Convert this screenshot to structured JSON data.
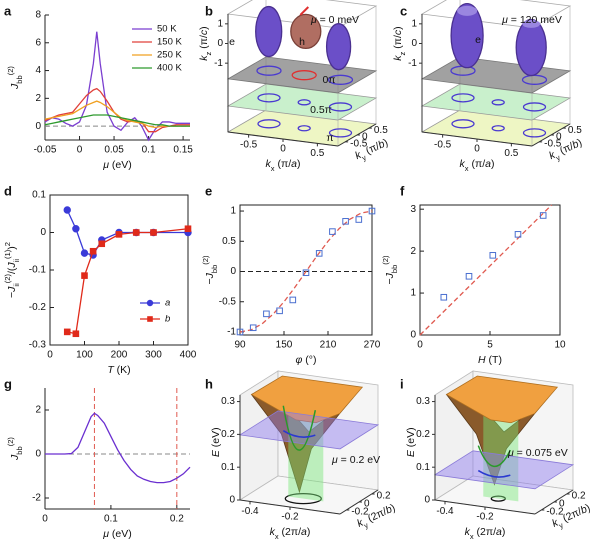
{
  "chart_data": [
    {
      "type": "line",
      "panel": "a",
      "xlabel": [
        {
          "i": "μ"
        },
        " (eV)"
      ],
      "ylabel": [
        {
          "i": "J"
        },
        {
          "sub": "bb"
        },
        {
          "sup": "(2)"
        }
      ],
      "xlim": [
        -0.05,
        0.16
      ],
      "xticks": [
        -0.05,
        0,
        0.05,
        0.1,
        0.15
      ],
      "ylim": [
        -1,
        8
      ],
      "yticks": [
        0,
        2,
        4,
        6,
        8
      ],
      "hlines": [
        {
          "value": 0,
          "color": "#888888",
          "dash": true
        }
      ],
      "legend": "upper right",
      "x": [
        -0.05,
        -0.04,
        -0.03,
        -0.02,
        -0.01,
        0,
        0.01,
        0.02,
        0.025,
        0.03,
        0.04,
        0.05,
        0.06,
        0.07,
        0.08,
        0.09,
        0.1,
        0.11,
        0.12,
        0.13,
        0.14,
        0.15,
        0.16
      ],
      "series": [
        {
          "name": "50 K",
          "color": "#7b3fd0",
          "values": [
            0.3,
            0.6,
            0.5,
            0.2,
            0.0,
            0.3,
            1.5,
            4.5,
            6.8,
            4.5,
            1.0,
            0.0,
            -0.3,
            0.3,
            0.6,
            0.0,
            -1.0,
            -0.2,
            0.3,
            0.3,
            0.2,
            0.2,
            0.2
          ]
        },
        {
          "name": "150 K",
          "color": "#e0403a",
          "values": [
            0.4,
            0.6,
            0.8,
            0.9,
            1.0,
            1.6,
            2.2,
            2.6,
            2.7,
            2.5,
            1.8,
            1.0,
            0.5,
            0.3,
            0.4,
            0.3,
            -0.4,
            -0.4,
            -0.1,
            0.0,
            0.1,
            0.1,
            0.1
          ]
        },
        {
          "name": "250 K",
          "color": "#f0a020",
          "values": [
            0.5,
            0.6,
            0.7,
            0.8,
            0.9,
            1.2,
            1.5,
            1.7,
            1.8,
            1.7,
            1.4,
            1.0,
            0.6,
            0.4,
            0.3,
            0.2,
            0.0,
            -0.1,
            0.0,
            0.0,
            0.0,
            0.0,
            0.0
          ]
        },
        {
          "name": "400 K",
          "color": "#2e9a2e",
          "values": [
            0.1,
            0.2,
            0.3,
            0.4,
            0.5,
            0.6,
            0.7,
            0.8,
            0.8,
            0.8,
            0.8,
            0.7,
            0.6,
            0.5,
            0.4,
            0.3,
            0.2,
            0.1,
            0.1,
            0.0,
            0.0,
            0.0,
            0.0
          ]
        }
      ]
    },
    {
      "type": "surface3d",
      "panel": "b",
      "title": [
        {
          "i": "μ"
        },
        " = 0 meV"
      ],
      "annotations": [
        [
          "e"
        ],
        [
          "h"
        ],
        [
          "0π"
        ],
        [
          "0.5π"
        ],
        [
          "π"
        ]
      ],
      "xlabel": [
        {
          "i": "k"
        },
        {
          "sub": "x"
        },
        " (π/",
        {
          "i": "a"
        },
        ")"
      ],
      "ylabel": [
        {
          "i": "k"
        },
        {
          "sub": "y"
        },
        " (π/",
        {
          "i": "b"
        },
        ")"
      ],
      "zlabel": [
        {
          "i": "k"
        },
        {
          "sub": "z"
        },
        " (π/",
        {
          "i": "c"
        },
        ")"
      ],
      "xlim": [
        -0.8,
        0.8
      ],
      "xticks": [
        -0.5,
        0,
        0.5
      ],
      "ylim": [
        -0.8,
        0.8
      ],
      "yticks": [
        -0.5,
        0,
        0.5
      ],
      "zlim": [
        -4.5,
        1.5
      ],
      "zticks": [
        -1,
        0,
        1
      ]
    },
    {
      "type": "surface3d",
      "panel": "c",
      "title": [
        {
          "i": "μ"
        },
        " = 120 meV"
      ],
      "annotations": [
        [
          "e"
        ]
      ],
      "xlabel": [
        {
          "i": "k"
        },
        {
          "sub": "x"
        },
        " (π/",
        {
          "i": "a"
        },
        ")"
      ],
      "ylabel": [
        {
          "i": "k"
        },
        {
          "sub": "y"
        },
        " (π/",
        {
          "i": "b"
        },
        ")"
      ],
      "zlabel": [
        {
          "i": "k"
        },
        {
          "sub": "z"
        },
        " (π/",
        {
          "i": "c"
        },
        ")"
      ],
      "xlim": [
        -0.8,
        0.8
      ],
      "xticks": [
        -0.5,
        0,
        0.5
      ],
      "ylim": [
        -0.8,
        0.8
      ],
      "yticks": [
        -0.5,
        0,
        0.5
      ],
      "zlim": [
        -4.5,
        1.5
      ],
      "zticks": [
        -1,
        0,
        1
      ]
    },
    {
      "type": "line",
      "panel": "d",
      "box": true,
      "xlabel": [
        {
          "i": "T"
        },
        " (K)"
      ],
      "ylabel": [
        "−",
        {
          "i": "J"
        },
        {
          "sub": "ii"
        },
        {
          "sup": "(2)"
        },
        "/(",
        {
          "i": "J"
        },
        {
          "sub": "ii"
        },
        {
          "sup": "(1)"
        },
        ")",
        {
          "sup": "2"
        }
      ],
      "xlim": [
        0,
        400
      ],
      "xticks": [
        0,
        100,
        200,
        300,
        400
      ],
      "ylim": [
        -0.3,
        0.1
      ],
      "yticks": [
        -0.3,
        -0.2,
        -0.1,
        0,
        0.1
      ],
      "legend": "lower right",
      "series": [
        {
          "name": "a",
          "color": "#3a3ad8",
          "marker": "circle",
          "x": [
            50,
            75,
            100,
            125,
            150,
            200,
            250,
            300,
            400
          ],
          "values": [
            0.06,
            0.01,
            -0.055,
            -0.06,
            -0.02,
            0,
            0,
            0,
            0
          ]
        },
        {
          "name": "b",
          "color": "#e02a1a",
          "marker": "square",
          "x": [
            50,
            75,
            100,
            125,
            150,
            200,
            250,
            300,
            400
          ],
          "values": [
            -0.265,
            -0.27,
            -0.115,
            -0.05,
            -0.03,
            -0.005,
            0,
            0,
            0.01
          ]
        }
      ]
    },
    {
      "type": "line",
      "panel": "e",
      "box": true,
      "xlabel": [
        {
          "i": "φ"
        },
        " (°)"
      ],
      "ylabel": [
        "−",
        {
          "i": "J"
        },
        {
          "sub": "bb"
        },
        {
          "sup": "(2)"
        }
      ],
      "xlim": [
        90,
        270
      ],
      "xticks": [
        90,
        150,
        210,
        270
      ],
      "ylim": [
        -1.05,
        1.1
      ],
      "yticks": [
        -1,
        -0.5,
        0,
        0.5,
        1
      ],
      "hlines": [
        {
          "value": 0,
          "color": "#222222",
          "dash": true
        }
      ],
      "series": [
        {
          "color": "#e05a50",
          "dash": true,
          "x": [
            90,
            105,
            120,
            135,
            150,
            165,
            180,
            195,
            210,
            225,
            240,
            255,
            270
          ],
          "values": [
            -1,
            -0.966,
            -0.866,
            -0.707,
            -0.5,
            -0.259,
            0,
            0.259,
            0.5,
            0.707,
            0.866,
            0.966,
            1
          ]
        },
        {
          "color": "#4a6fd0",
          "marker": "square",
          "open": true,
          "line": false,
          "x": [
            90,
            108,
            126,
            144,
            162,
            180,
            198,
            216,
            234,
            252,
            270
          ],
          "values": [
            -1,
            -0.93,
            -0.7,
            -0.65,
            -0.47,
            -0.02,
            0.3,
            0.66,
            0.83,
            0.86,
            1
          ]
        }
      ]
    },
    {
      "type": "line",
      "panel": "f",
      "box": true,
      "xlabel": [
        {
          "i": "H"
        },
        " (T)"
      ],
      "ylabel": [
        "−",
        {
          "i": "J"
        },
        {
          "sub": "bb"
        },
        {
          "sup": "(2)"
        }
      ],
      "xlim": [
        0,
        10
      ],
      "xticks": [
        0,
        5,
        10
      ],
      "ylim": [
        0,
        3.1
      ],
      "yticks": [
        0,
        1,
        2,
        3
      ],
      "series": [
        {
          "color": "#e05a50",
          "dash": true,
          "x": [
            0,
            9.4
          ],
          "values": [
            0,
            3.1
          ]
        },
        {
          "color": "#4a6fd0",
          "marker": "square",
          "open": true,
          "line": false,
          "x": [
            1.7,
            3.5,
            5.2,
            7,
            8.8
          ],
          "values": [
            0.9,
            1.4,
            1.9,
            2.4,
            2.85
          ]
        }
      ]
    },
    {
      "type": "line",
      "panel": "g",
      "xlabel": [
        {
          "i": "μ"
        },
        " (eV)"
      ],
      "ylabel": [
        {
          "i": "J"
        },
        {
          "sub": "bb"
        },
        {
          "sup": "(2)"
        }
      ],
      "xlim": [
        0,
        0.22
      ],
      "xticks": [
        0,
        0.1,
        0.2
      ],
      "ylim": [
        -2.5,
        3
      ],
      "yticks": [
        -2,
        0,
        2
      ],
      "hlines": [
        {
          "value": 0,
          "color": "#888888",
          "dash": true
        }
      ],
      "vlines": [
        {
          "value": 0.075,
          "color": "#e05a50",
          "dash": true
        },
        {
          "value": 0.2,
          "color": "#e05a50",
          "dash": true
        }
      ],
      "x": [
        0,
        0.01,
        0.02,
        0.03,
        0.04,
        0.05,
        0.06,
        0.07,
        0.075,
        0.08,
        0.09,
        0.1,
        0.11,
        0.12,
        0.13,
        0.14,
        0.15,
        0.16,
        0.17,
        0.18,
        0.19,
        0.2,
        0.21,
        0.22
      ],
      "series": [
        {
          "color": "#6a2fd0",
          "values": [
            0,
            0,
            0,
            0,
            0.02,
            0.3,
            1.0,
            1.7,
            1.85,
            1.75,
            1.4,
            0.8,
            0.2,
            -0.3,
            -0.7,
            -1.0,
            -1.15,
            -1.25,
            -1.3,
            -1.3,
            -1.25,
            -1.1,
            -0.9,
            -0.6
          ]
        }
      ]
    },
    {
      "type": "surface3d",
      "panel": "h",
      "annotations": [
        [
          {
            "i": "μ"
          },
          " = 0.2 eV"
        ]
      ],
      "xlabel": [
        {
          "i": "k"
        },
        {
          "sub": "x"
        },
        " (2π/",
        {
          "i": "a"
        },
        ")"
      ],
      "ylabel": [
        {
          "i": "k"
        },
        {
          "sub": "y"
        },
        " (2π/",
        {
          "i": "b"
        },
        ")"
      ],
      "zlabel": [
        {
          "i": "E"
        },
        " (eV)"
      ],
      "xlim": [
        -0.45,
        0.05
      ],
      "xticks": [
        -0.4,
        -0.2
      ],
      "ylim": [
        -0.3,
        0.3
      ],
      "yticks": [
        -0.2,
        0,
        0.2
      ],
      "zlim": [
        0,
        0.32
      ],
      "zticks": [
        0,
        0.1,
        0.2,
        0.3
      ]
    },
    {
      "type": "surface3d",
      "panel": "i",
      "annotations": [
        [
          {
            "i": "μ"
          },
          " = 0.075 eV"
        ]
      ],
      "xlabel": [
        {
          "i": "k"
        },
        {
          "sub": "x"
        },
        " (2π/",
        {
          "i": "a"
        },
        ")"
      ],
      "ylabel": [
        {
          "i": "k"
        },
        {
          "sub": "y"
        },
        " (2π/",
        {
          "i": "b"
        },
        ")"
      ],
      "zlabel": [
        {
          "i": "E"
        },
        " (eV)"
      ],
      "xlim": [
        -0.45,
        0.05
      ],
      "xticks": [
        -0.4,
        -0.2
      ],
      "ylim": [
        -0.3,
        0.3
      ],
      "yticks": [
        -0.2,
        0,
        0.2
      ],
      "zlim": [
        0,
        0.32
      ],
      "zticks": [
        0,
        0.1,
        0.2,
        0.3
      ]
    }
  ]
}
